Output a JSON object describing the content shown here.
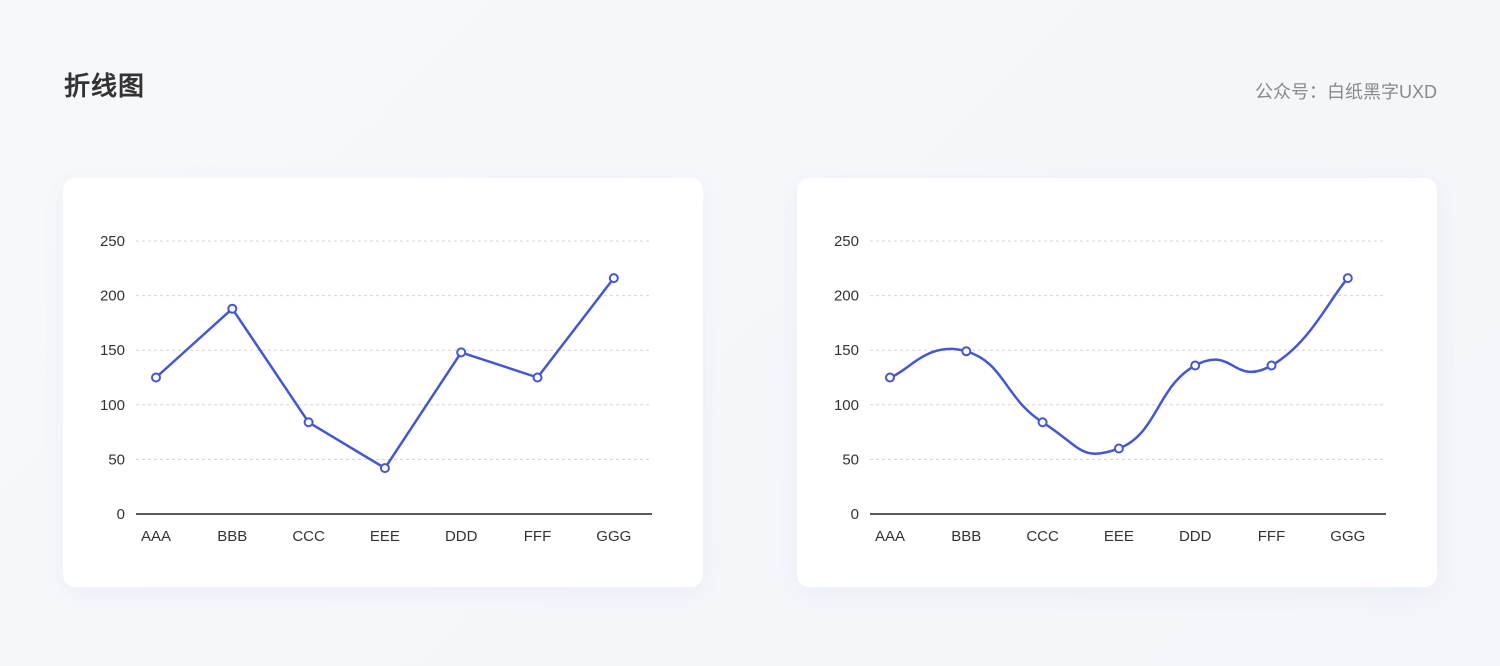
{
  "header": {
    "title": "折线图",
    "subtitle": "公众号：白纸黑字UXD"
  },
  "colors": {
    "line": "#4457d0",
    "grid": "#d4d4d4",
    "axis": "#222222",
    "point_fill": "#ffffff"
  },
  "chart_data": [
    {
      "type": "line",
      "style": "straight",
      "categories": [
        "AAA",
        "BBB",
        "CCC",
        "EEE",
        "DDD",
        "FFF",
        "GGG"
      ],
      "series": [
        {
          "values": [
            125,
            188,
            84,
            42,
            148,
            125,
            216
          ]
        }
      ],
      "ylim": [
        0,
        250
      ],
      "yticks": [
        0,
        50,
        100,
        150,
        200,
        250
      ],
      "grid": true,
      "markers": "hollow-circle"
    },
    {
      "type": "line",
      "style": "smooth",
      "categories": [
        "AAA",
        "BBB",
        "CCC",
        "EEE",
        "DDD",
        "FFF",
        "GGG"
      ],
      "series": [
        {
          "values": [
            125,
            149,
            84,
            60,
            136,
            136,
            216
          ]
        }
      ],
      "ylim": [
        0,
        250
      ],
      "yticks": [
        0,
        50,
        100,
        150,
        200,
        250
      ],
      "grid": true,
      "markers": "hollow-circle"
    }
  ]
}
